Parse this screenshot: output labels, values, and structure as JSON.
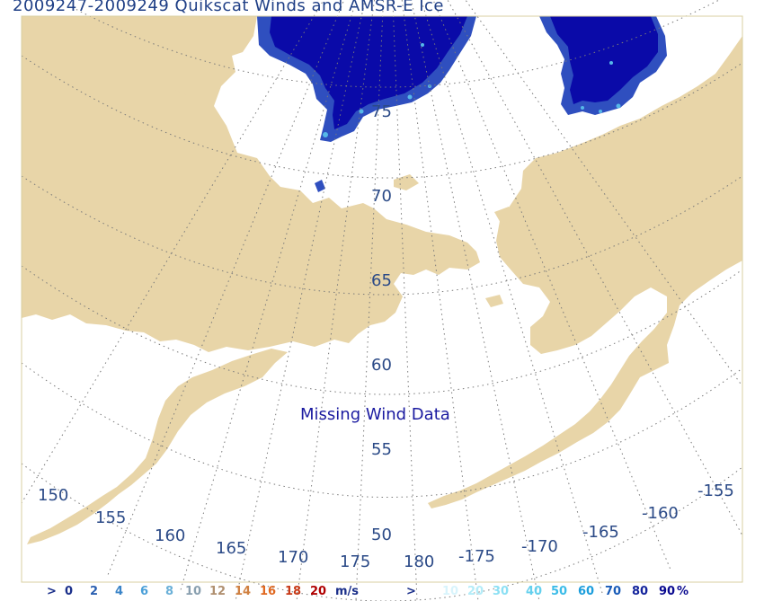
{
  "title": "2009247-2009249 Quikscat Winds and AMSR-E Ice",
  "notice": "Missing Wind Data",
  "colors": {
    "land": "#e8d5a8",
    "ice_dark": "#0a0aa8",
    "ice_mid": "#2f4fbf",
    "ice_light": "#56b8e8",
    "grid": "#7a7a7a",
    "label": "#2b4a87"
  },
  "latitude_labels": [
    "75",
    "70",
    "65",
    "60",
    "55",
    "50"
  ],
  "longitude_labels": [
    "150",
    "155",
    "160",
    "165",
    "170",
    "175",
    "180",
    "-175",
    "-170",
    "-165",
    "-160",
    "-155"
  ],
  "legend": {
    "wind": {
      "prefix": ">",
      "values": [
        "0",
        "2",
        "4",
        "6",
        "8",
        "10",
        "12",
        "14",
        "16",
        "18",
        "20"
      ],
      "colors": [
        "#1a2f8a",
        "#2a5fb0",
        "#3a84c8",
        "#4a9fd8",
        "#6ab0d8",
        "#8aa0b0",
        "#b09070",
        "#d08040",
        "#e06820",
        "#c83a18",
        "#b00000"
      ],
      "unit": "m/s"
    },
    "ice": {
      "prefix": ">",
      "values": [
        "0",
        "10",
        "20",
        "30",
        "40",
        "50",
        "60",
        "70",
        "80",
        "90"
      ],
      "suffix": "%",
      "colors": [
        "#ffffff",
        "#d8f4fc",
        "#b4ecf8",
        "#8ce0f4",
        "#64d0ee",
        "#3cbce8",
        "#1c9edc",
        "#1a5cb8",
        "#14249c",
        "#0a0a90"
      ]
    }
  }
}
